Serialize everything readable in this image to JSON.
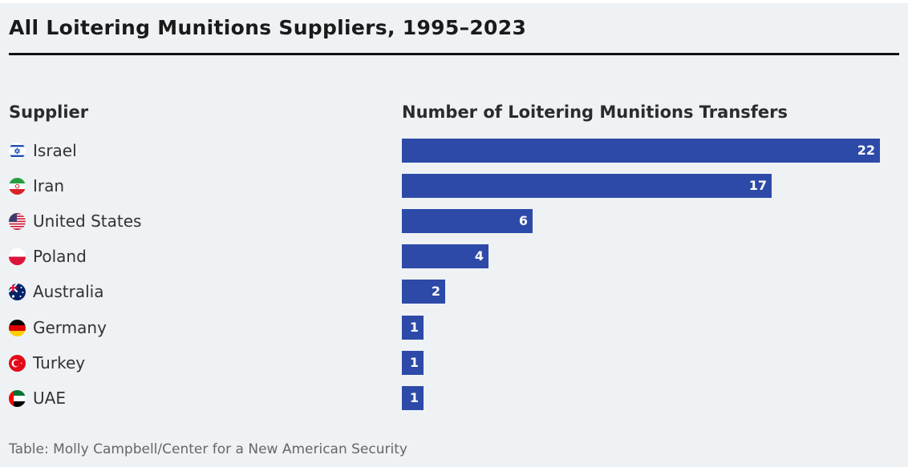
{
  "title": "All Loitering Munitions Suppliers, 1995–2023",
  "columns": {
    "supplier": "Supplier",
    "value": "Number of Loitering Munitions Transfers"
  },
  "source": "Table: Molly Campbell/Center for a New American Security",
  "bar_color": "#2d4aa8",
  "chart_data": {
    "type": "bar",
    "orientation": "horizontal",
    "title": "All Loitering Munitions Suppliers, 1995–2023",
    "xlabel": "Number of Loitering Munitions Transfers",
    "ylabel": "Supplier",
    "xlim": [
      0,
      22
    ],
    "categories": [
      "Israel",
      "Iran",
      "United States",
      "Poland",
      "Australia",
      "Germany",
      "Turkey",
      "UAE"
    ],
    "values": [
      22,
      17,
      6,
      4,
      2,
      1,
      1,
      1
    ],
    "flag_icons": [
      "israel-flag-icon",
      "iran-flag-icon",
      "united-states-flag-icon",
      "poland-flag-icon",
      "australia-flag-icon",
      "germany-flag-icon",
      "turkey-flag-icon",
      "uae-flag-icon"
    ]
  }
}
